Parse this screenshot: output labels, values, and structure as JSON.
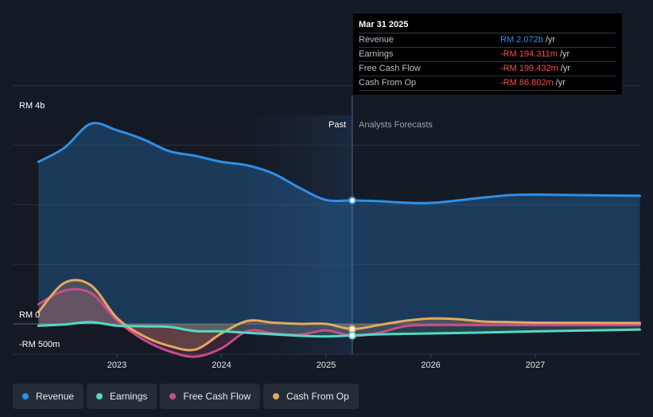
{
  "y_label_top": "RM 4b",
  "y_label_zero": "RM 0",
  "y_label_bottom": "-RM 500m",
  "region_past": "Past",
  "region_forecast": "Analysts Forecasts",
  "tooltip": {
    "date": "Mar 31 2025",
    "rows": [
      {
        "label": "Revenue",
        "value": "RM 2.072b",
        "unit": "/yr",
        "color": "#2f8fe6"
      },
      {
        "label": "Earnings",
        "value": "-RM 194.311m",
        "unit": "/yr",
        "color": "#f2504a"
      },
      {
        "label": "Free Cash Flow",
        "value": "-RM 199.432m",
        "unit": "/yr",
        "color": "#f2504a"
      },
      {
        "label": "Cash From Op",
        "value": "-RM 86.802m",
        "unit": "/yr",
        "color": "#f2504a"
      }
    ]
  },
  "legend": [
    {
      "label": "Revenue",
      "color": "#2f8fe6"
    },
    {
      "label": "Earnings",
      "color": "#54d8c6"
    },
    {
      "label": "Free Cash Flow",
      "color": "#c94b8c"
    },
    {
      "label": "Cash From Op",
      "color": "#e4a85f"
    }
  ],
  "chart_data": {
    "type": "area",
    "x_ticks": [
      "2023",
      "2024",
      "2025",
      "2026",
      "2027"
    ],
    "ylim": [
      -500,
      4000
    ],
    "y_unit": "RM m",
    "past_end": 2025.25,
    "series": [
      {
        "name": "Revenue",
        "color": "#2f8fe6",
        "x": [
          2022.25,
          2022.5,
          2022.75,
          2023.0,
          2023.25,
          2023.5,
          2023.75,
          2024.0,
          2024.25,
          2024.5,
          2024.75,
          2025.0,
          2025.25,
          2025.5,
          2025.75,
          2026.0,
          2026.25,
          2026.5,
          2026.75,
          2027.0,
          2027.5,
          2028.0
        ],
        "y": [
          2720,
          2960,
          3360,
          3250,
          3100,
          2900,
          2820,
          2720,
          2660,
          2520,
          2280,
          2080,
          2072,
          2060,
          2035,
          2030,
          2070,
          2120,
          2160,
          2170,
          2160,
          2150
        ]
      },
      {
        "name": "Earnings",
        "color": "#54d8c6",
        "x": [
          2022.25,
          2022.5,
          2022.75,
          2023.0,
          2023.25,
          2023.5,
          2023.75,
          2024.0,
          2024.25,
          2024.5,
          2024.75,
          2025.0,
          2025.25,
          2025.5,
          2026.0,
          2026.5,
          2027.0,
          2027.5,
          2028.0
        ],
        "y": [
          -30,
          -10,
          30,
          -30,
          -40,
          -50,
          -120,
          -125,
          -150,
          -175,
          -200,
          -210,
          -194,
          -175,
          -160,
          -145,
          -125,
          -110,
          -95
        ]
      },
      {
        "name": "Free Cash Flow",
        "color": "#c94b8c",
        "x": [
          2022.25,
          2022.5,
          2022.75,
          2023.0,
          2023.25,
          2023.5,
          2023.75,
          2024.0,
          2024.25,
          2024.5,
          2024.75,
          2025.0,
          2025.25,
          2025.5,
          2025.75,
          2026.0,
          2026.5,
          2027.0,
          2027.5,
          2028.0
        ],
        "y": [
          330,
          560,
          520,
          60,
          -260,
          -460,
          -550,
          -410,
          -120,
          -160,
          -180,
          -110,
          -199,
          -150,
          -40,
          -20,
          -20,
          -20,
          -20,
          -20
        ]
      },
      {
        "name": "Cash From Op",
        "color": "#e4a85f",
        "x": [
          2022.25,
          2022.5,
          2022.75,
          2023.0,
          2023.25,
          2023.5,
          2023.75,
          2024.0,
          2024.25,
          2024.5,
          2024.75,
          2025.0,
          2025.25,
          2025.5,
          2025.75,
          2026.0,
          2026.25,
          2026.5,
          2026.75,
          2027.0,
          2027.5,
          2028.0
        ],
        "y": [
          200,
          690,
          650,
          100,
          -200,
          -370,
          -430,
          -160,
          50,
          20,
          0,
          0,
          -87,
          -20,
          50,
          90,
          80,
          40,
          30,
          20,
          18,
          15
        ]
      }
    ]
  }
}
